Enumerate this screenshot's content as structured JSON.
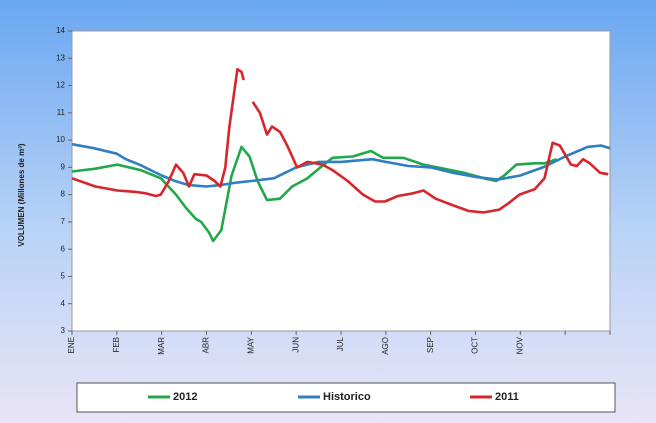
{
  "chart_data": {
    "type": "line",
    "y_label": "VOLUMEN (Millones de m³)",
    "xlim": [
      0,
      12
    ],
    "xticks": [
      {
        "value": 0,
        "label": "ENE"
      },
      {
        "value": 1,
        "label": "FEB"
      },
      {
        "value": 2,
        "label": "MAR"
      },
      {
        "value": 3,
        "label": "ABR"
      },
      {
        "value": 4,
        "label": "MAY"
      },
      {
        "value": 5,
        "label": "JUN"
      },
      {
        "value": 6,
        "label": "JUL"
      },
      {
        "value": 7,
        "label": "AGO"
      },
      {
        "value": 8,
        "label": "SEP"
      },
      {
        "value": 9,
        "label": "OCT"
      },
      {
        "value": 10,
        "label": "NOV"
      },
      {
        "value": 11,
        "label": null
      },
      {
        "value": 12,
        "label": null
      }
    ],
    "ylim": [
      3,
      14
    ],
    "yticks": [
      3,
      4,
      5,
      6,
      7,
      8,
      9,
      10,
      11,
      12,
      13,
      14
    ],
    "grid": false,
    "series": [
      {
        "name": "2012",
        "color": "#22a84a",
        "x": [
          0,
          0.52,
          1.01,
          1.53,
          1.98,
          2.32,
          2.55,
          2.77,
          2.88,
          3.06,
          3.15,
          3.33,
          3.56,
          3.78,
          3.96,
          4.14,
          4.35,
          4.64,
          4.91,
          5.25,
          5.54,
          5.81,
          6.26,
          6.67,
          6.94,
          7.39,
          7.84,
          8.29,
          8.74,
          9.19,
          9.46,
          9.64,
          9.91,
          10.32,
          10.54,
          10.81
        ],
        "values": [
          8.85,
          8.95,
          9.1,
          8.9,
          8.6,
          8.0,
          7.5,
          7.1,
          7.0,
          6.6,
          6.3,
          6.7,
          8.7,
          9.75,
          9.4,
          8.5,
          7.8,
          7.85,
          8.3,
          8.6,
          9.0,
          9.35,
          9.4,
          9.6,
          9.35,
          9.35,
          9.1,
          8.95,
          8.8,
          8.6,
          8.5,
          8.7,
          9.1,
          9.15,
          9.15,
          9.3
        ]
      },
      {
        "name": "Historico",
        "color": "#2f7fc1",
        "x": [
          0,
          0.5,
          1,
          1.2,
          1.5,
          2,
          2.3,
          2.6,
          3,
          3.3,
          3.7,
          4,
          4.5,
          5,
          5.5,
          6,
          6.7,
          7,
          7.5,
          8,
          8.5,
          9,
          9.5,
          10,
          10.5,
          11,
          11.5,
          11.8,
          12
        ],
        "values": [
          9.85,
          9.7,
          9.5,
          9.3,
          9.1,
          8.7,
          8.5,
          8.35,
          8.3,
          8.35,
          8.45,
          8.5,
          8.6,
          9.0,
          9.2,
          9.2,
          9.3,
          9.2,
          9.05,
          9.0,
          8.8,
          8.65,
          8.55,
          8.7,
          9.0,
          9.4,
          9.75,
          9.8,
          9.7
        ]
      },
      {
        "name": "2011",
        "color": "#d6262b",
        "x": [
          0,
          0.52,
          1.01,
          1.42,
          1.64,
          1.87,
          1.98,
          2.16,
          2.32,
          2.48,
          2.61,
          2.73,
          3.0,
          3.18,
          3.31,
          3.42,
          3.51,
          3.69,
          3.78,
          3.83,
          null,
          4.03,
          4.19,
          4.35,
          4.46,
          4.64,
          4.8,
          5.02,
          5.25,
          5.59,
          5.81,
          6.15,
          6.49,
          6.76,
          6.98,
          7.27,
          7.61,
          7.84,
          8.11,
          8.51,
          8.85,
          9.19,
          9.53,
          9.75,
          9.98,
          10.32,
          10.54,
          10.72,
          10.88,
          11.13,
          11.26,
          11.4,
          11.55,
          11.78,
          11.96
        ],
        "values": [
          8.6,
          8.3,
          8.15,
          8.1,
          8.05,
          7.95,
          8.0,
          8.5,
          9.1,
          8.8,
          8.3,
          8.75,
          8.7,
          8.5,
          8.3,
          9.0,
          10.5,
          12.6,
          12.5,
          12.2,
          null,
          11.4,
          11.0,
          10.2,
          10.5,
          10.3,
          9.8,
          9.0,
          9.2,
          9.1,
          8.9,
          8.5,
          8.0,
          7.75,
          7.75,
          7.95,
          8.05,
          8.15,
          7.85,
          7.6,
          7.4,
          7.35,
          7.45,
          7.7,
          8.0,
          8.2,
          8.6,
          9.9,
          9.8,
          9.1,
          9.05,
          9.3,
          9.15,
          8.8,
          8.75
        ]
      }
    ]
  }
}
